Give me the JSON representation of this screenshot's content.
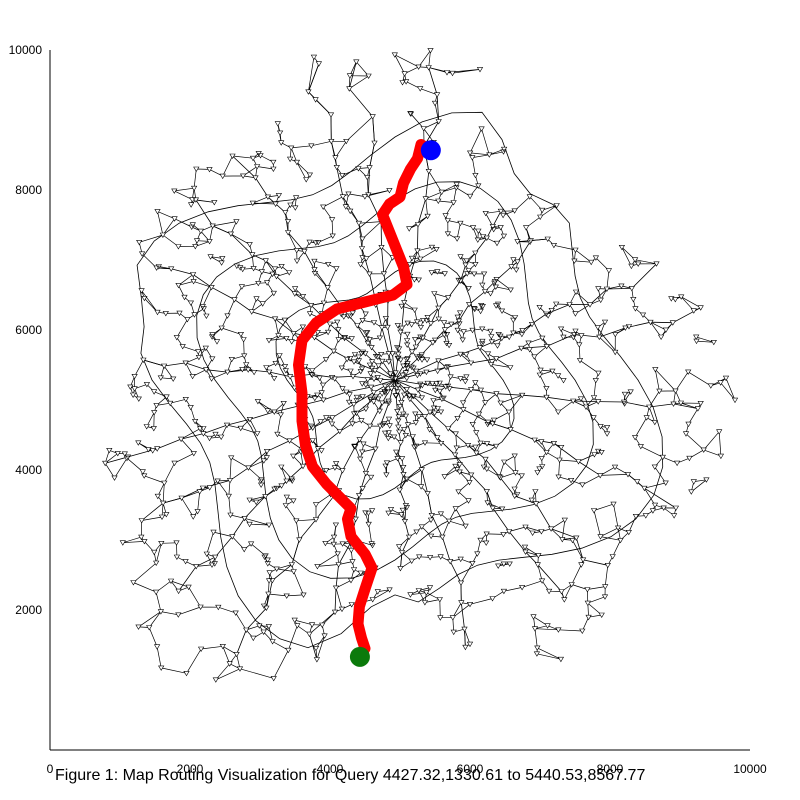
{
  "caption": "Figure 1: Map Routing Visualization for Query 4427.32,1330.61 to 5440.53,8567.77",
  "chart_data": {
    "type": "scatter",
    "title": "",
    "xlabel": "",
    "ylabel": "",
    "xlim": [
      0,
      10000
    ],
    "ylim": [
      0,
      10000
    ],
    "x_ticks": [
      0,
      2000,
      4000,
      6000,
      8000,
      10000
    ],
    "y_ticks": [
      2000,
      4000,
      6000,
      8000,
      10000
    ],
    "x_tick_labels": [
      "0",
      "2000",
      "4000",
      "6000",
      "8000",
      "10000"
    ],
    "y_tick_labels": [
      "2000",
      "4000",
      "6000",
      "8000",
      "10000"
    ],
    "grid": false,
    "legend": "none",
    "query": {
      "start": {
        "x": 4427.32,
        "y": 1330.61
      },
      "end": {
        "x": 5440.53,
        "y": 8567.77
      }
    },
    "series": [
      {
        "type": "line",
        "color": "#ff0000",
        "points": [
          [
            4427.32,
            1330.61
          ],
          [
            4500,
            1450
          ],
          [
            4450,
            1600
          ],
          [
            4400,
            1800
          ],
          [
            4420,
            2050
          ],
          [
            4500,
            2300
          ],
          [
            4600,
            2600
          ],
          [
            4500,
            2800
          ],
          [
            4300,
            3050
          ],
          [
            4250,
            3300
          ],
          [
            4300,
            3450
          ],
          [
            4150,
            3600
          ],
          [
            3950,
            3800
          ],
          [
            3750,
            4050
          ],
          [
            3650,
            4350
          ],
          [
            3600,
            4700
          ],
          [
            3600,
            5100
          ],
          [
            3550,
            5500
          ],
          [
            3600,
            5850
          ],
          [
            3800,
            6100
          ],
          [
            4100,
            6300
          ],
          [
            4500,
            6400
          ],
          [
            4900,
            6500
          ],
          [
            5100,
            6650
          ],
          [
            5050,
            6900
          ],
          [
            4950,
            7150
          ],
          [
            4850,
            7400
          ],
          [
            4750,
            7650
          ],
          [
            4850,
            7800
          ],
          [
            5000,
            7900
          ],
          [
            5050,
            8100
          ],
          [
            5150,
            8300
          ],
          [
            5250,
            8450
          ],
          [
            5300,
            8650
          ],
          [
            5440.53,
            8567.77
          ]
        ]
      }
    ],
    "markers": [
      {
        "name": "start",
        "x": 4427.32,
        "y": 1330.61,
        "color": "#0b7a0b"
      },
      {
        "name": "end",
        "x": 5440.53,
        "y": 8567.77,
        "color": "#0000ff"
      }
    ],
    "network": {
      "color": "#000000",
      "node_symbol": "open-triangle"
    }
  }
}
